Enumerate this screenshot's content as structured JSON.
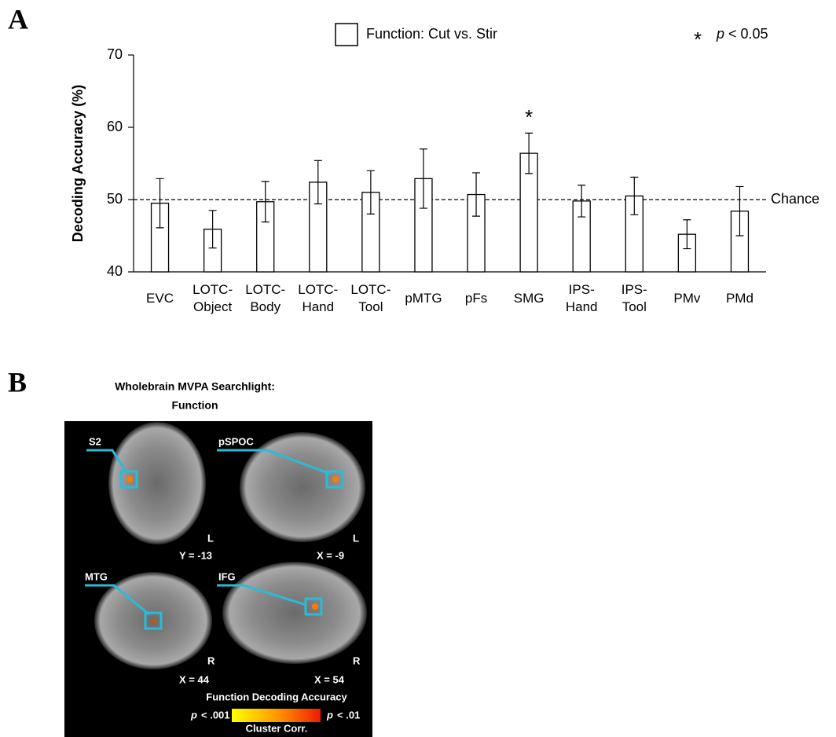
{
  "chart_data": {
    "type": "bar",
    "panel_label": "A",
    "y_label": "Decoding Accuracy (%)",
    "categories": [
      "EVC",
      "LOTC-\nObject",
      "LOTC-\nBody",
      "LOTC-\nHand",
      "LOTC-\nTool",
      "pMTG",
      "pFs",
      "SMG",
      "IPS-\nHand",
      "IPS-\nTool",
      "PMv",
      "PMd"
    ],
    "series": [
      {
        "name": "Function: Cut vs. Stir",
        "color": "#ffffff",
        "values": [
          49.5,
          45.9,
          49.7,
          52.4,
          51.0,
          52.9,
          50.7,
          56.4,
          49.8,
          50.5,
          45.2,
          48.4
        ],
        "errors": [
          3.4,
          2.6,
          2.8,
          3.0,
          3.0,
          4.1,
          3.0,
          2.8,
          2.2,
          2.6,
          2.0,
          3.4
        ]
      }
    ],
    "ylim": [
      40,
      70
    ],
    "yticks": [
      40,
      50,
      60,
      70
    ],
    "chance": {
      "value": 50,
      "label": "Chance"
    },
    "significance": {
      "category": "SMG",
      "marker": "*"
    },
    "significance_legend": {
      "marker": "*",
      "p": "p",
      "text": "< 0.05"
    }
  },
  "panel_b": {
    "panel_label": "B",
    "title": [
      "Wholebrain MVPA Searchlight:",
      "Function"
    ],
    "images": [
      {
        "region": "S2",
        "coord": "Y = -13",
        "hemisphere": "L"
      },
      {
        "region": "pSPOC",
        "coord": "X = -9",
        "hemisphere": "L"
      },
      {
        "region": "MTG",
        "coord": "X = 44",
        "hemisphere": "R"
      },
      {
        "region": "IFG",
        "coord": "X = 54",
        "hemisphere": "R"
      }
    ],
    "colorbar": {
      "title": "Function Decoding Accuracy",
      "low_p": "p",
      "low": "< .001",
      "high_p": "p",
      "high": "< .01",
      "note": "Cluster Corr."
    }
  }
}
